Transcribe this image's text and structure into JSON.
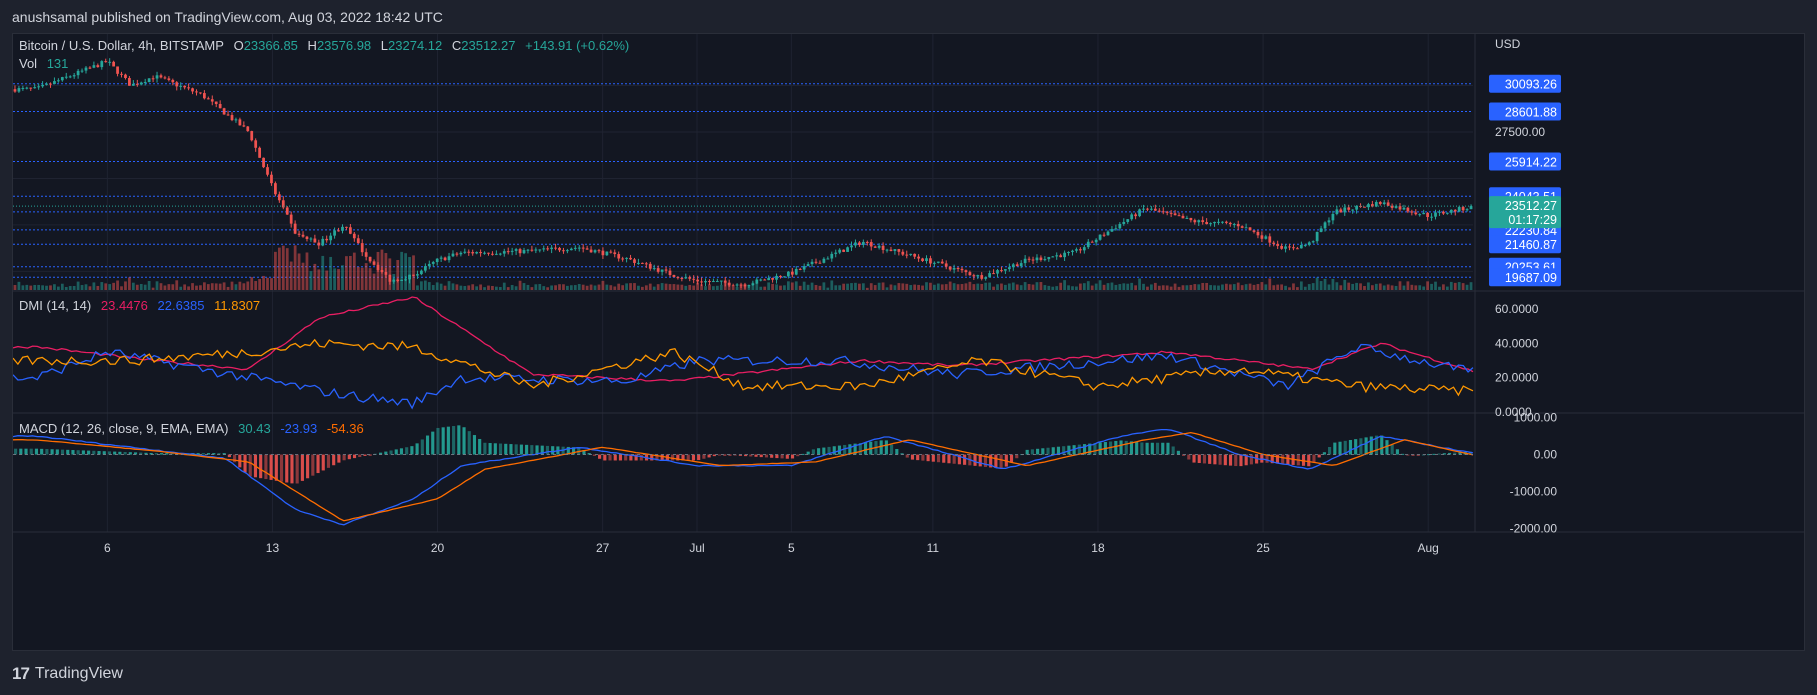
{
  "header": {
    "published": "anushsamal published on TradingView.com, Aug 03, 2022 18:42 UTC"
  },
  "symbol": {
    "name": "Bitcoin / U.S. Dollar, 4h, BITSTAMP",
    "o_label": "O",
    "o": "23366.85",
    "h_label": "H",
    "h": "23576.98",
    "l_label": "L",
    "l": "23274.12",
    "c_label": "C",
    "c": "23512.27",
    "change": "+143.91 (+0.62%)"
  },
  "volume": {
    "label": "Vol",
    "value": "131"
  },
  "dmi": {
    "label": "DMI (14, 14)",
    "v1": "23.4476",
    "v2": "22.6385",
    "v3": "11.8307"
  },
  "macd": {
    "label": "MACD (12, 26, close, 9, EMA, EMA)",
    "v1": "30.43",
    "v2": "-23.93",
    "v3": "-54.36"
  },
  "price_axis": {
    "currency": "USD",
    "plain_ticks": [
      "27500.00"
    ],
    "levels": [
      "30093.26",
      "28601.88",
      "25914.22",
      "24043.51",
      "23199.88",
      "22230.84",
      "21460.87",
      "20253.61",
      "19687.09"
    ],
    "current_price": "23512.27",
    "countdown": "01:17:29"
  },
  "dmi_axis": [
    "60.0000",
    "40.0000",
    "20.0000",
    "0.0000"
  ],
  "macd_axis": [
    "1000.00",
    "0.00",
    "-1000.00",
    "-2000.00"
  ],
  "x_axis": [
    "6",
    "13",
    "20",
    "27",
    "Jul",
    "5",
    "11",
    "18",
    "25",
    "Aug"
  ],
  "colors": {
    "up": "#26a69a",
    "down": "#ef5350",
    "level": "#2962ff",
    "adx": "#e91e63",
    "plus_di": "#2962ff",
    "minus_di": "#ff9800",
    "macd": "#2962ff",
    "signal": "#ff6d00",
    "price_badge": "#26a69a"
  },
  "footer": {
    "brand": "TradingView"
  },
  "chart_data": {
    "type": "candlestick",
    "timeframe": "4h",
    "x_ticks": [
      "6",
      "13",
      "20",
      "27",
      "Jul",
      "5",
      "11",
      "18",
      "25",
      "Aug"
    ],
    "y_unit": "USD",
    "price_anchors": [
      [
        "Jun 3",
        29800
      ],
      [
        "Jun 6",
        31300
      ],
      [
        "Jun 7",
        30000
      ],
      [
        "Jun 8",
        30500
      ],
      [
        "Jun 10",
        29500
      ],
      [
        "Jun 12",
        27500
      ],
      [
        "Jun 13",
        24500
      ],
      [
        "Jun 14",
        22000
      ],
      [
        "Jun 15",
        21500
      ],
      [
        "Jun 16",
        22500
      ],
      [
        "Jun 17",
        20800
      ],
      [
        "Jun 18",
        19500
      ],
      [
        "Jun 19",
        19800
      ],
      [
        "Jun 20",
        20600
      ],
      [
        "Jun 21",
        21000
      ],
      [
        "Jun 24",
        21100
      ],
      [
        "Jun 26",
        21300
      ],
      [
        "Jun 28",
        20700
      ],
      [
        "Jun 30",
        19800
      ],
      [
        "Jul 1",
        19500
      ],
      [
        "Jul 3",
        19300
      ],
      [
        "Jul 5",
        19900
      ],
      [
        "Jul 8",
        21600
      ],
      [
        "Jul 11",
        20500
      ],
      [
        "Jul 13",
        19700
      ],
      [
        "Jul 15",
        20600
      ],
      [
        "Jul 17",
        21000
      ],
      [
        "Jul 19",
        22600
      ],
      [
        "Jul 20",
        23400
      ],
      [
        "Jul 22",
        22700
      ],
      [
        "Jul 24",
        22500
      ],
      [
        "Jul 26",
        21200
      ],
      [
        "Jul 27",
        21500
      ],
      [
        "Jul 28",
        23200
      ],
      [
        "Jul 30",
        23700
      ],
      [
        "Aug 1",
        23000
      ],
      [
        "Aug 3",
        23512
      ]
    ],
    "dmi_anchors": {
      "adx": [
        [
          "Jun 3",
          38
        ],
        [
          "Jun 8",
          30
        ],
        [
          "Jun 12",
          25
        ],
        [
          "Jun 15",
          55
        ],
        [
          "Jun 19",
          67
        ],
        [
          "Jun 24",
          22
        ],
        [
          "Jun 30",
          18
        ],
        [
          "Jul 8",
          30
        ],
        [
          "Jul 12",
          27
        ],
        [
          "Jul 21",
          35
        ],
        [
          "Jul 27",
          25
        ],
        [
          "Jul 30",
          40
        ],
        [
          "Aug 3",
          23.45
        ]
      ],
      "plus_di": [
        [
          "Jun 3",
          20
        ],
        [
          "Jun 6",
          35
        ],
        [
          "Jun 12",
          20
        ],
        [
          "Jun 16",
          10
        ],
        [
          "Jun 19",
          5
        ],
        [
          "Jun 21",
          20
        ],
        [
          "Jun 28",
          18
        ],
        [
          "Jul 1",
          30
        ],
        [
          "Jul 7",
          30
        ],
        [
          "Jul 12",
          22
        ],
        [
          "Jul 21",
          33
        ],
        [
          "Jul 26",
          15
        ],
        [
          "Jul 29",
          38
        ],
        [
          "Aug 3",
          22.64
        ]
      ],
      "minus_di": [
        [
          "Jun 3",
          30
        ],
        [
          "Jun 7",
          30
        ],
        [
          "Jun 12",
          35
        ],
        [
          "Jun 15",
          40
        ],
        [
          "Jun 19",
          38
        ],
        [
          "Jun 24",
          15
        ],
        [
          "Jun 30",
          35
        ],
        [
          "Jul 3",
          15
        ],
        [
          "Jul 8",
          15
        ],
        [
          "Jul 13",
          30
        ],
        [
          "Jul 18",
          15
        ],
        [
          "Jul 24",
          25
        ],
        [
          "Jul 29",
          15
        ],
        [
          "Aug 3",
          11.83
        ]
      ]
    },
    "macd_anchors": {
      "macd": [
        [
          "Jun 3",
          500
        ],
        [
          "Jun 7",
          200
        ],
        [
          "Jun 11",
          -100
        ],
        [
          "Jun 14",
          -1500
        ],
        [
          "Jun 16",
          -1900
        ],
        [
          "Jun 19",
          -1200
        ],
        [
          "Jun 21",
          -300
        ],
        [
          "Jun 26",
          200
        ],
        [
          "Jul 1",
          -300
        ],
        [
          "Jul 5",
          -300
        ],
        [
          "Jul 9",
          500
        ],
        [
          "Jul 14",
          -400
        ],
        [
          "Jul 19",
          500
        ],
        [
          "Jul 21",
          700
        ],
        [
          "Jul 24",
          0
        ],
        [
          "Jul 27",
          -400
        ],
        [
          "Jul 30",
          500
        ],
        [
          "Aug 3",
          30
        ]
      ],
      "signal": [
        [
          "Jun 3",
          400
        ],
        [
          "Jun 8",
          100
        ],
        [
          "Jun 12",
          -200
        ],
        [
          "Jun 16",
          -1800
        ],
        [
          "Jun 20",
          -1200
        ],
        [
          "Jun 22",
          -400
        ],
        [
          "Jun 27",
          200
        ],
        [
          "Jul 2",
          -300
        ],
        [
          "Jul 6",
          -200
        ],
        [
          "Jul 10",
          400
        ],
        [
          "Jul 15",
          -300
        ],
        [
          "Jul 20",
          400
        ],
        [
          "Jul 22",
          600
        ],
        [
          "Jul 25",
          0
        ],
        [
          "Jul 28",
          -300
        ],
        [
          "Jul 31",
          400
        ],
        [
          "Aug 3",
          -24
        ]
      ]
    },
    "ylim": [
      19000,
      31800
    ],
    "dmi_ylim": [
      0,
      70
    ],
    "macd_ylim": [
      -2100,
      1100
    ]
  }
}
